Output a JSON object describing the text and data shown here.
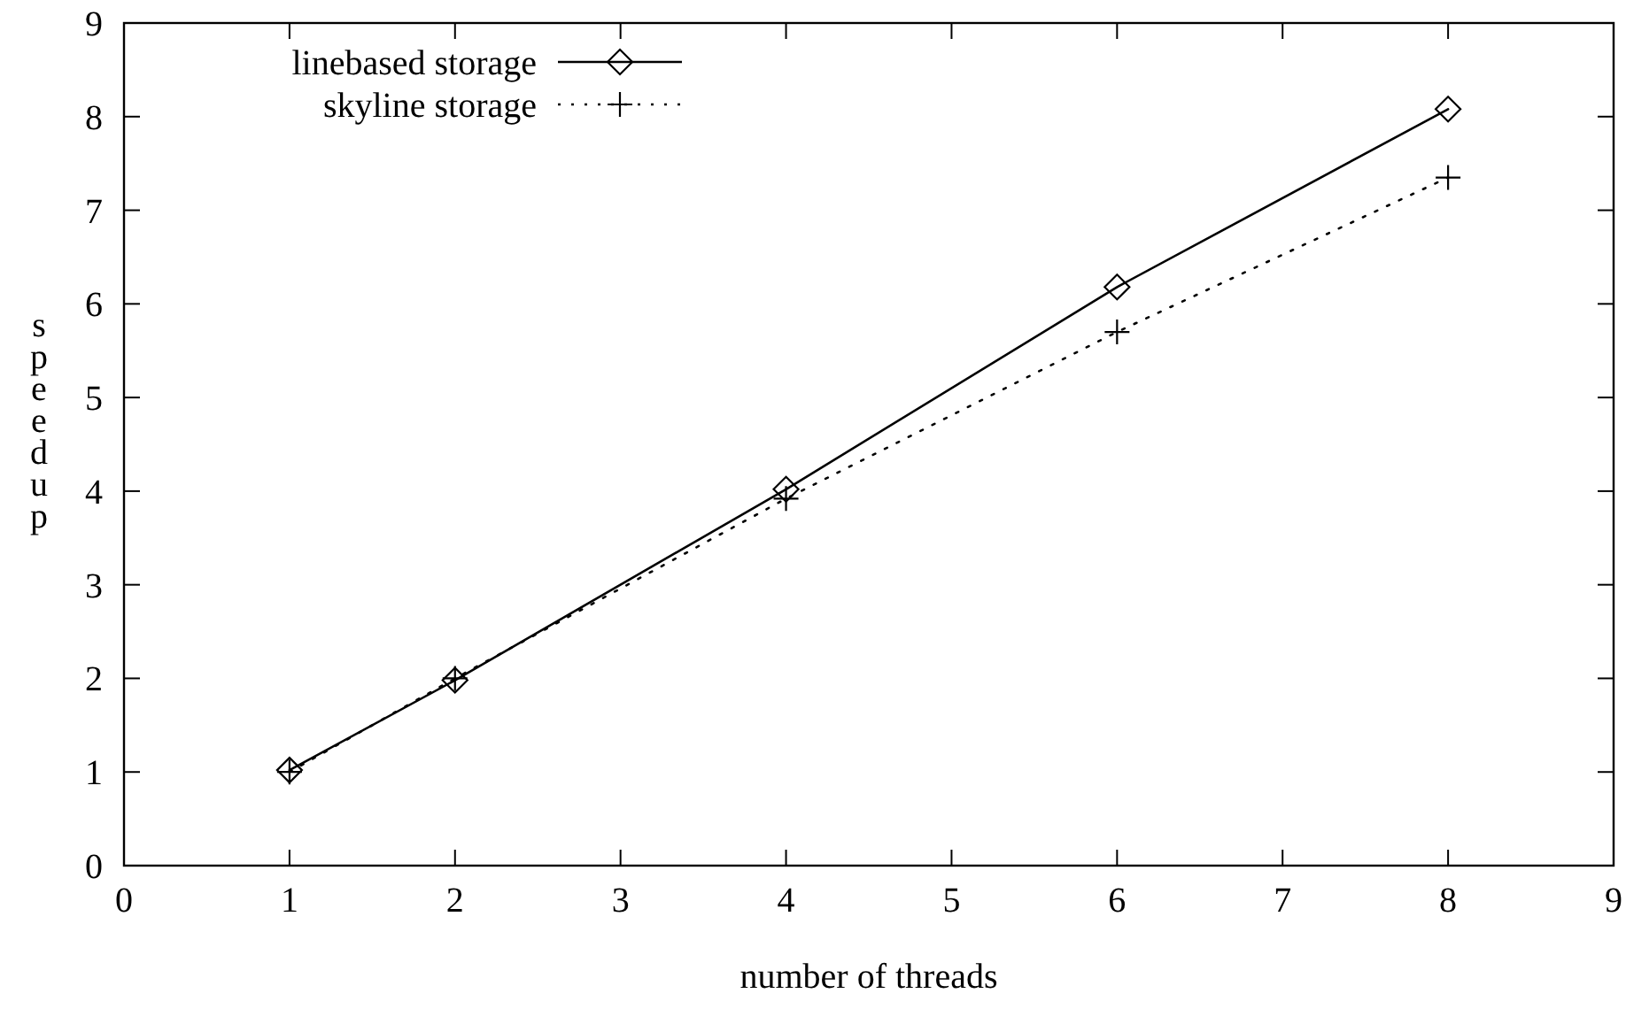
{
  "chart_data": {
    "type": "line",
    "xlabel": "number of threads",
    "ylabel": "speedup",
    "xlim": [
      0,
      9
    ],
    "xticks": [
      0,
      1,
      2,
      3,
      4,
      5,
      6,
      7,
      8,
      9
    ],
    "ylim": [
      0,
      9
    ],
    "yticks": [
      0,
      1,
      2,
      3,
      4,
      5,
      6,
      7,
      8,
      9
    ],
    "grid": false,
    "legend": "top left",
    "series": [
      {
        "name": "linebased storage",
        "color": "#000000",
        "x": [
          1,
          2,
          4,
          6,
          8
        ],
        "values": [
          1.02,
          1.98,
          4.02,
          6.18,
          8.08
        ],
        "marker": "diamond",
        "line_style": "solid"
      },
      {
        "name": "skyline storage",
        "color": "#000000",
        "x": [
          1,
          2,
          4,
          6,
          8
        ],
        "values": [
          1.0,
          2.0,
          3.92,
          5.7,
          7.35
        ],
        "marker": "cross",
        "line_style": "dotted"
      }
    ]
  }
}
